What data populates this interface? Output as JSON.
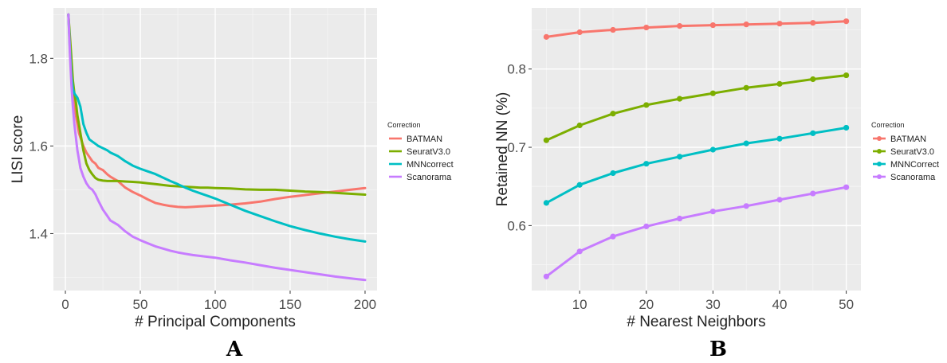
{
  "chart_data": [
    {
      "type": "line",
      "panel_label": "A",
      "xlabel": "# Principal Components",
      "ylabel": "LISI score",
      "xlim": [
        -8,
        208
      ],
      "ylim": [
        1.27,
        1.915
      ],
      "x_ticks": [
        0,
        50,
        100,
        150,
        200
      ],
      "y_ticks": [
        1.4,
        1.6,
        1.8
      ],
      "grid": true,
      "legend": {
        "title": "Correction",
        "placement": "right"
      },
      "x": [
        2,
        3,
        4,
        5,
        6,
        7,
        8,
        9,
        10,
        12,
        14,
        16,
        18,
        20,
        22,
        25,
        28,
        30,
        35,
        40,
        45,
        50,
        55,
        60,
        65,
        70,
        75,
        80,
        85,
        90,
        95,
        100,
        110,
        120,
        130,
        140,
        150,
        160,
        170,
        180,
        190,
        200
      ],
      "series": [
        {
          "name": "BATMAN",
          "color": "#F8766D",
          "values": [
            1.9,
            1.83,
            1.78,
            1.74,
            1.7,
            1.67,
            1.65,
            1.63,
            1.62,
            1.6,
            1.585,
            1.575,
            1.565,
            1.56,
            1.55,
            1.545,
            1.535,
            1.53,
            1.52,
            1.505,
            1.495,
            1.487,
            1.478,
            1.47,
            1.466,
            1.463,
            1.461,
            1.46,
            1.461,
            1.462,
            1.463,
            1.464,
            1.466,
            1.469,
            1.473,
            1.479,
            1.484,
            1.488,
            1.492,
            1.496,
            1.5,
            1.504
          ]
        },
        {
          "name": "SeuratV3.0",
          "color": "#7CAE00",
          "values": [
            1.9,
            1.85,
            1.8,
            1.75,
            1.72,
            1.7,
            1.67,
            1.65,
            1.63,
            1.59,
            1.56,
            1.545,
            1.535,
            1.527,
            1.523,
            1.521,
            1.52,
            1.52,
            1.52,
            1.519,
            1.518,
            1.517,
            1.515,
            1.513,
            1.511,
            1.509,
            1.508,
            1.507,
            1.506,
            1.505,
            1.505,
            1.504,
            1.503,
            1.501,
            1.5,
            1.5,
            1.498,
            1.496,
            1.495,
            1.493,
            1.491,
            1.489
          ]
        },
        {
          "name": "MNNcorrect",
          "color": "#00BFC4",
          "values": [
            1.9,
            1.82,
            1.76,
            1.73,
            1.72,
            1.715,
            1.71,
            1.7,
            1.69,
            1.65,
            1.63,
            1.615,
            1.61,
            1.605,
            1.6,
            1.595,
            1.59,
            1.585,
            1.577,
            1.565,
            1.555,
            1.548,
            1.542,
            1.536,
            1.528,
            1.52,
            1.513,
            1.505,
            1.498,
            1.492,
            1.486,
            1.48,
            1.466,
            1.452,
            1.44,
            1.428,
            1.417,
            1.408,
            1.4,
            1.393,
            1.387,
            1.382
          ]
        },
        {
          "name": "Scanorama",
          "color": "#C77CFF",
          "values": [
            1.9,
            1.81,
            1.74,
            1.69,
            1.65,
            1.62,
            1.59,
            1.57,
            1.55,
            1.53,
            1.515,
            1.505,
            1.5,
            1.49,
            1.475,
            1.455,
            1.44,
            1.43,
            1.42,
            1.405,
            1.393,
            1.385,
            1.378,
            1.371,
            1.366,
            1.361,
            1.357,
            1.354,
            1.351,
            1.349,
            1.347,
            1.345,
            1.339,
            1.334,
            1.328,
            1.322,
            1.317,
            1.312,
            1.307,
            1.302,
            1.298,
            1.294
          ]
        }
      ]
    },
    {
      "type": "line",
      "panel_label": "B",
      "xlabel": "# Nearest Neighbors",
      "ylabel": "Retained NN (%)",
      "xlim": [
        2.8,
        52.2
      ],
      "ylim": [
        0.517,
        0.878
      ],
      "x_ticks": [
        10,
        20,
        30,
        40,
        50
      ],
      "y_ticks": [
        0.6,
        0.7,
        0.8
      ],
      "grid": true,
      "markers": true,
      "legend": {
        "title": "Correction",
        "placement": "right"
      },
      "x": [
        5,
        10,
        15,
        20,
        25,
        30,
        35,
        40,
        45,
        50
      ],
      "series": [
        {
          "name": "BATMAN",
          "color": "#F8766D",
          "values": [
            0.841,
            0.847,
            0.85,
            0.853,
            0.855,
            0.856,
            0.857,
            0.858,
            0.859,
            0.861
          ]
        },
        {
          "name": "SeuratV3.0",
          "color": "#7CAE00",
          "values": [
            0.709,
            0.728,
            0.743,
            0.754,
            0.762,
            0.769,
            0.776,
            0.781,
            0.787,
            0.792
          ]
        },
        {
          "name": "MNNCorrect",
          "color": "#00BFC4",
          "values": [
            0.629,
            0.652,
            0.667,
            0.679,
            0.688,
            0.697,
            0.705,
            0.711,
            0.718,
            0.725
          ]
        },
        {
          "name": "Scanorama",
          "color": "#C77CFF",
          "values": [
            0.535,
            0.567,
            0.586,
            0.599,
            0.609,
            0.618,
            0.625,
            0.633,
            0.641,
            0.649
          ]
        }
      ]
    }
  ]
}
